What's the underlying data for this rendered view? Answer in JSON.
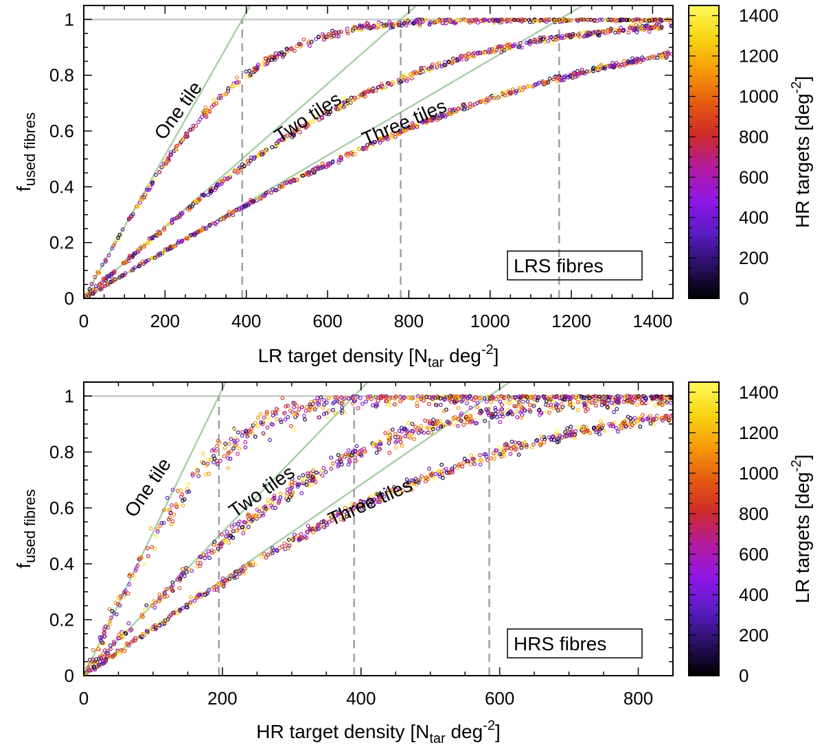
{
  "chart_data": [
    {
      "type": "scatter",
      "panel": "top",
      "xlabel_main": "LR target density [N",
      "xlabel_sub": "tar",
      "xlabel_unit": " deg",
      "xlabel_sup": "-2",
      "xlabel_close": "]",
      "ylabel_main": "f",
      "ylabel_sub": "used fibres",
      "xlim": [
        0,
        1450
      ],
      "ylim": [
        0,
        1.05
      ],
      "xticks": [
        0,
        200,
        400,
        600,
        800,
        1000,
        1200,
        1400
      ],
      "xtick_labels": [
        "0",
        "200",
        "400",
        "600",
        "800",
        "1000",
        "1200",
        "1400"
      ],
      "yticks": [
        0,
        0.2,
        0.4,
        0.6,
        0.8,
        1
      ],
      "ytick_labels": [
        "0",
        "0.2",
        "0.4",
        "0.6",
        "0.8",
        "1"
      ],
      "legend": "LRS fibres",
      "legend_position": "bottom-right",
      "grid": false,
      "reference_line_y": 1,
      "saturation_densities": [
        390,
        780,
        1170
      ],
      "series": [
        {
          "name": "One tile",
          "tiles": 1,
          "capacity": 390,
          "noise": 0.006
        },
        {
          "name": "Two tiles",
          "tiles": 2,
          "capacity": 780,
          "noise": 0.005
        },
        {
          "name": "Three tiles",
          "tiles": 3,
          "capacity": 1170,
          "noise": 0.004
        }
      ],
      "curve_labels": [
        {
          "text": "One tile",
          "x": 245,
          "y": 0.66,
          "angle": -54
        },
        {
          "text": "Two tiles",
          "x": 560,
          "y": 0.63,
          "angle": -33
        },
        {
          "text": "Three tiles",
          "x": 795,
          "y": 0.61,
          "angle": -23
        }
      ],
      "colorbar": {
        "label_main": "HR targets [deg",
        "label_sup": "-2",
        "label_close": "]",
        "min": 0,
        "max": 1450,
        "ticks": [
          0,
          200,
          400,
          600,
          800,
          1000,
          1200,
          1400
        ],
        "tick_labels": [
          "0",
          "200",
          "400",
          "600",
          "800",
          "1000",
          "1200",
          "1400"
        ]
      }
    },
    {
      "type": "scatter",
      "panel": "bottom",
      "xlabel_main": "HR target density [N",
      "xlabel_sub": "tar",
      "xlabel_unit": " deg",
      "xlabel_sup": "-2",
      "xlabel_close": "]",
      "ylabel_main": "f",
      "ylabel_sub": "used fibres",
      "xlim": [
        0,
        850
      ],
      "ylim": [
        0,
        1.05
      ],
      "xticks": [
        0,
        200,
        400,
        600,
        800
      ],
      "xtick_labels": [
        "0",
        "200",
        "400",
        "600",
        "800"
      ],
      "yticks": [
        0,
        0.2,
        0.4,
        0.6,
        0.8,
        1
      ],
      "ytick_labels": [
        "0",
        "0.2",
        "0.4",
        "0.6",
        "0.8",
        "1"
      ],
      "legend": "HRS fibres",
      "legend_position": "bottom-right",
      "grid": false,
      "reference_line_y": 1,
      "saturation_densities": [
        195,
        390,
        585
      ],
      "series": [
        {
          "name": "One tile",
          "tiles": 1,
          "capacity": 195,
          "noise": 0.022
        },
        {
          "name": "Two tiles",
          "tiles": 2,
          "capacity": 390,
          "noise": 0.013
        },
        {
          "name": "Three tiles",
          "tiles": 3,
          "capacity": 585,
          "noise": 0.008
        }
      ],
      "curve_labels": [
        {
          "text": "One tile",
          "x": 100,
          "y": 0.66,
          "angle": -56
        },
        {
          "text": "Two tiles",
          "x": 262,
          "y": 0.64,
          "angle": -35
        },
        {
          "text": "Three tiles",
          "x": 417,
          "y": 0.6,
          "angle": -24
        }
      ],
      "colorbar": {
        "label_main": "LR targets [deg",
        "label_sup": "-2",
        "label_close": "]",
        "min": 0,
        "max": 1450,
        "ticks": [
          0,
          200,
          400,
          600,
          800,
          1000,
          1200,
          1400
        ],
        "tick_labels": [
          "0",
          "200",
          "400",
          "600",
          "800",
          "1000",
          "1200",
          "1400"
        ]
      }
    }
  ],
  "colormap": [
    "#000000",
    "#2a0f63",
    "#5a1cc4",
    "#8f17e6",
    "#b31aa0",
    "#cc2a2a",
    "#e65a10",
    "#f59a08",
    "#f8d512",
    "#fff95a"
  ],
  "colors": {
    "reference_line": "#c8c8c8",
    "linear_guide": "#a8d0a8",
    "dashed_line": "#a0a0a0"
  }
}
